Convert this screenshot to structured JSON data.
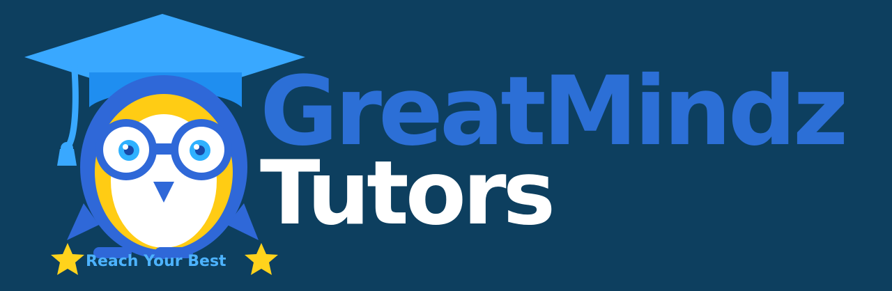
{
  "logo": {
    "line_1": "GreatMindz",
    "line_2": "Tutors",
    "tagline": "Reach Your Best",
    "icons": [
      "graduation-cap-icon",
      "owl-icon",
      "star-icon"
    ],
    "colors": {
      "background": "#0d3f5f",
      "line_1": "#2c6fd6",
      "line_2": "#ffffff",
      "tagline": "#4db3ff",
      "cap": "#39a8ff",
      "owl_body": "#2f68d8",
      "owl_accent": "#ffcc14",
      "star": "#ffd31c"
    }
  }
}
